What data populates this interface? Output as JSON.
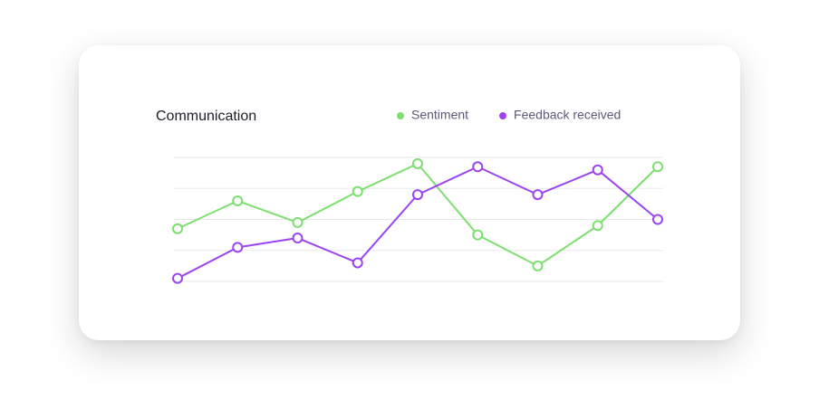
{
  "chart_data": {
    "type": "line",
    "title": "Communication",
    "categories": [
      null,
      null,
      null,
      null,
      null,
      null,
      null,
      null,
      null
    ],
    "series": [
      {
        "name": "Sentiment",
        "color": "#7ddf6f",
        "values": [
          1.7,
          2.6,
          1.9,
          2.9,
          3.8,
          1.5,
          0.5,
          1.8,
          3.7
        ]
      },
      {
        "name": "Feedback received",
        "color": "#9b44f2",
        "values": [
          0.1,
          1.1,
          1.4,
          0.6,
          2.8,
          3.7,
          2.8,
          3.6,
          2.0
        ]
      }
    ],
    "ylim": [
      0,
      4
    ],
    "yticks": [
      0,
      1,
      2,
      3,
      4
    ],
    "grid": true,
    "legend": "top-right"
  }
}
